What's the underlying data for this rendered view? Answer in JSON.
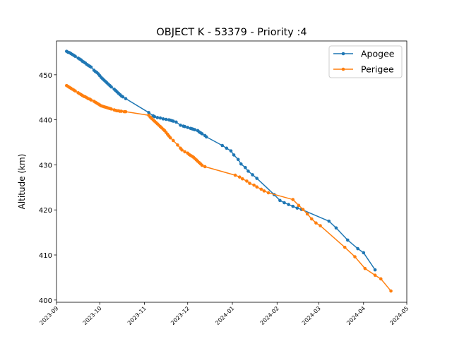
{
  "chart_data": {
    "type": "line",
    "title": "OBJECT K - 53379 - Priority :4",
    "xlabel": "",
    "ylabel": "Altitude (km)",
    "xlim": [
      "2023-09-01",
      "2024-05-01"
    ],
    "ylim": [
      399.5,
      457.5
    ],
    "yticks": [
      400,
      410,
      420,
      430,
      440,
      450
    ],
    "xticks": [
      "2023-09",
      "2023-10",
      "2023-11",
      "2023-12",
      "2024-01",
      "2024-02",
      "2024-03",
      "2024-04",
      "2024-05"
    ],
    "grid": false,
    "legend_position": "top-right",
    "series": [
      {
        "name": "Apogee",
        "color": "#1f77b4",
        "points": [
          [
            "2023-09-08",
            455.2
          ],
          [
            "2023-09-09",
            455.0
          ],
          [
            "2023-09-10",
            454.9
          ],
          [
            "2023-09-11",
            454.7
          ],
          [
            "2023-09-12",
            454.5
          ],
          [
            "2023-09-13",
            454.3
          ],
          [
            "2023-09-14",
            454.1
          ],
          [
            "2023-09-16",
            453.7
          ],
          [
            "2023-09-17",
            453.5
          ],
          [
            "2023-09-18",
            453.3
          ],
          [
            "2023-09-19",
            453.0
          ],
          [
            "2023-09-20",
            452.8
          ],
          [
            "2023-09-21",
            452.6
          ],
          [
            "2023-09-22",
            452.3
          ],
          [
            "2023-09-23",
            452.1
          ],
          [
            "2023-09-24",
            451.9
          ],
          [
            "2023-09-25",
            451.7
          ],
          [
            "2023-09-27",
            451.0
          ],
          [
            "2023-09-28",
            450.7
          ],
          [
            "2023-09-29",
            450.5
          ],
          [
            "2023-09-30",
            450.2
          ],
          [
            "2023-10-01",
            449.8
          ],
          [
            "2023-10-02",
            449.4
          ],
          [
            "2023-10-03",
            449.1
          ],
          [
            "2023-10-04",
            448.8
          ],
          [
            "2023-10-05",
            448.5
          ],
          [
            "2023-10-06",
            448.2
          ],
          [
            "2023-10-07",
            447.9
          ],
          [
            "2023-10-08",
            447.6
          ],
          [
            "2023-10-09",
            447.3
          ],
          [
            "2023-10-11",
            446.8
          ],
          [
            "2023-10-12",
            446.5
          ],
          [
            "2023-10-13",
            446.2
          ],
          [
            "2023-10-14",
            445.9
          ],
          [
            "2023-10-15",
            445.6
          ],
          [
            "2023-10-16",
            445.3
          ],
          [
            "2023-10-17",
            445.1
          ],
          [
            "2023-10-19",
            444.7
          ],
          [
            "2023-11-04",
            441.6
          ],
          [
            "2023-11-07",
            440.9
          ],
          [
            "2023-11-08",
            440.7
          ],
          [
            "2023-11-10",
            440.5
          ],
          [
            "2023-11-12",
            440.4
          ],
          [
            "2023-11-14",
            440.2
          ],
          [
            "2023-11-16",
            440.1
          ],
          [
            "2023-11-18",
            440.0
          ],
          [
            "2023-11-19",
            439.9
          ],
          [
            "2023-11-20",
            439.8
          ],
          [
            "2023-11-21",
            439.7
          ],
          [
            "2023-11-23",
            439.5
          ],
          [
            "2023-11-26",
            438.8
          ],
          [
            "2023-11-28",
            438.6
          ],
          [
            "2023-11-29",
            438.5
          ],
          [
            "2023-12-01",
            438.3
          ],
          [
            "2023-12-03",
            438.1
          ],
          [
            "2023-12-04",
            438.0
          ],
          [
            "2023-12-05",
            437.9
          ],
          [
            "2023-12-06",
            437.8
          ],
          [
            "2023-12-08",
            437.6
          ],
          [
            "2023-12-09",
            437.3
          ],
          [
            "2023-12-10",
            437.1
          ],
          [
            "2023-12-11",
            436.9
          ],
          [
            "2023-12-13",
            436.5
          ],
          [
            "2023-12-14",
            436.2
          ],
          [
            "2023-12-25",
            434.3
          ],
          [
            "2023-12-28",
            433.7
          ],
          [
            "2023-12-31",
            433.1
          ],
          [
            "2024-01-02",
            432.2
          ],
          [
            "2024-01-05",
            431.2
          ],
          [
            "2024-01-07",
            430.2
          ],
          [
            "2024-01-10",
            429.4
          ],
          [
            "2024-01-12",
            428.6
          ],
          [
            "2024-01-15",
            427.8
          ],
          [
            "2024-01-18",
            427.0
          ],
          [
            "2024-01-30",
            423.4
          ],
          [
            "2024-02-03",
            422.1
          ],
          [
            "2024-02-06",
            421.6
          ],
          [
            "2024-02-09",
            421.2
          ],
          [
            "2024-02-12",
            420.8
          ],
          [
            "2024-02-15",
            420.4
          ],
          [
            "2024-02-18",
            420.1
          ],
          [
            "2024-03-08",
            417.5
          ],
          [
            "2024-03-13",
            416.0
          ],
          [
            "2024-03-21",
            413.3
          ],
          [
            "2024-03-28",
            411.4
          ],
          [
            "2024-04-01",
            410.5
          ],
          [
            "2024-04-09",
            406.7
          ]
        ]
      },
      {
        "name": "Perigee",
        "color": "#ff7f0e",
        "points": [
          [
            "2023-09-08",
            447.6
          ],
          [
            "2023-09-09",
            447.4
          ],
          [
            "2023-09-10",
            447.2
          ],
          [
            "2023-09-11",
            447.0
          ],
          [
            "2023-09-12",
            446.8
          ],
          [
            "2023-09-13",
            446.6
          ],
          [
            "2023-09-14",
            446.4
          ],
          [
            "2023-09-16",
            446.0
          ],
          [
            "2023-09-17",
            445.8
          ],
          [
            "2023-09-18",
            445.6
          ],
          [
            "2023-09-19",
            445.4
          ],
          [
            "2023-09-20",
            445.2
          ],
          [
            "2023-09-21",
            445.1
          ],
          [
            "2023-09-22",
            444.9
          ],
          [
            "2023-09-23",
            444.7
          ],
          [
            "2023-09-24",
            444.6
          ],
          [
            "2023-09-25",
            444.4
          ],
          [
            "2023-09-27",
            444.1
          ],
          [
            "2023-09-28",
            443.9
          ],
          [
            "2023-09-29",
            443.7
          ],
          [
            "2023-09-30",
            443.5
          ],
          [
            "2023-10-01",
            443.3
          ],
          [
            "2023-10-02",
            443.1
          ],
          [
            "2023-10-03",
            443.0
          ],
          [
            "2023-10-04",
            442.9
          ],
          [
            "2023-10-05",
            442.8
          ],
          [
            "2023-10-06",
            442.7
          ],
          [
            "2023-10-07",
            442.6
          ],
          [
            "2023-10-08",
            442.5
          ],
          [
            "2023-10-09",
            442.4
          ],
          [
            "2023-10-11",
            442.2
          ],
          [
            "2023-10-12",
            442.1
          ],
          [
            "2023-10-13",
            442.0
          ],
          [
            "2023-10-14",
            442.0
          ],
          [
            "2023-10-15",
            441.9
          ],
          [
            "2023-10-16",
            441.9
          ],
          [
            "2023-10-18",
            441.8
          ],
          [
            "2023-10-19",
            441.8
          ],
          [
            "2023-11-04",
            441.0
          ],
          [
            "2023-11-05",
            440.6
          ],
          [
            "2023-11-06",
            440.3
          ],
          [
            "2023-11-07",
            440.0
          ],
          [
            "2023-11-08",
            439.7
          ],
          [
            "2023-11-09",
            439.4
          ],
          [
            "2023-11-10",
            439.1
          ],
          [
            "2023-11-11",
            438.8
          ],
          [
            "2023-11-12",
            438.5
          ],
          [
            "2023-11-13",
            438.2
          ],
          [
            "2023-11-14",
            437.9
          ],
          [
            "2023-11-15",
            437.6
          ],
          [
            "2023-11-16",
            437.2
          ],
          [
            "2023-11-17",
            436.8
          ],
          [
            "2023-11-18",
            436.4
          ],
          [
            "2023-11-19",
            436.0
          ],
          [
            "2023-11-21",
            435.4
          ],
          [
            "2023-11-24",
            434.4
          ],
          [
            "2023-11-26",
            433.7
          ],
          [
            "2023-11-27",
            433.3
          ],
          [
            "2023-11-29",
            432.9
          ],
          [
            "2023-12-01",
            432.6
          ],
          [
            "2023-12-02",
            432.3
          ],
          [
            "2023-12-03",
            432.1
          ],
          [
            "2023-12-04",
            431.9
          ],
          [
            "2023-12-05",
            431.7
          ],
          [
            "2023-12-06",
            431.4
          ],
          [
            "2023-12-07",
            431.1
          ],
          [
            "2023-12-08",
            430.8
          ],
          [
            "2023-12-09",
            430.5
          ],
          [
            "2023-12-10",
            430.2
          ],
          [
            "2023-12-11",
            429.9
          ],
          [
            "2023-12-13",
            429.6
          ],
          [
            "2024-01-03",
            427.7
          ],
          [
            "2024-01-06",
            427.3
          ],
          [
            "2024-01-08",
            426.9
          ],
          [
            "2024-01-11",
            426.4
          ],
          [
            "2024-01-13",
            425.9
          ],
          [
            "2024-01-16",
            425.5
          ],
          [
            "2024-01-18",
            425.1
          ],
          [
            "2024-01-21",
            424.6
          ],
          [
            "2024-01-23",
            424.2
          ],
          [
            "2024-01-26",
            423.8
          ],
          [
            "2024-02-12",
            422.3
          ],
          [
            "2024-02-16",
            421.0
          ],
          [
            "2024-02-19",
            420.1
          ],
          [
            "2024-02-22",
            419.1
          ],
          [
            "2024-02-25",
            418.0
          ],
          [
            "2024-02-28",
            417.1
          ],
          [
            "2024-03-02",
            416.5
          ],
          [
            "2024-03-19",
            411.7
          ],
          [
            "2024-03-26",
            409.6
          ],
          [
            "2024-04-02",
            407.0
          ],
          [
            "2024-04-09",
            405.5
          ],
          [
            "2024-04-13",
            404.7
          ],
          [
            "2024-04-20",
            402.0
          ]
        ]
      }
    ]
  }
}
